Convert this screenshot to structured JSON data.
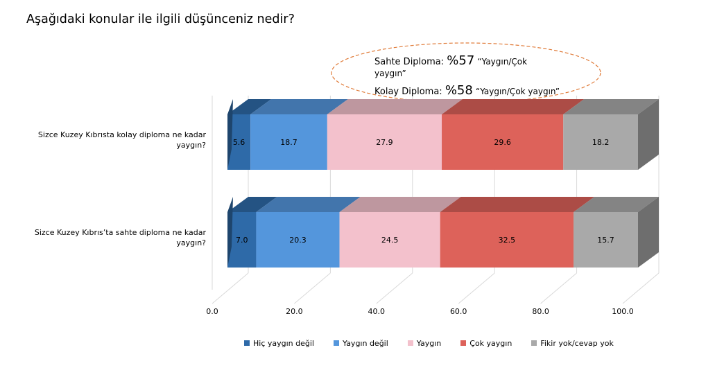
{
  "title": "Aşağıdaki konular ile ilgili düşünceniz nedir?",
  "callout": {
    "line1_label": "Sahte Diploma:",
    "line1_value": "%57",
    "line1_quote": "“Yaygın/Çok",
    "line2_quote": "yaygın”",
    "line3_label": "Kolay Diploma:",
    "line3_value": "%58",
    "line3_quote": "“Yaygın/Çok yaygın”"
  },
  "colors": {
    "series": [
      "#2e6aa8",
      "#5496dc",
      "#f3c1cc",
      "#dd625a",
      "#a9a9a9"
    ],
    "callout_border": "#e07b39"
  },
  "chart_data": {
    "type": "bar",
    "orientation": "horizontal",
    "stacked": true,
    "three_d": true,
    "categories": [
      [
        "Sizce Kuzey Kıbrısta kolay diploma ne kadar",
        "yaygın?"
      ],
      [
        "Sizce Kuzey Kıbrıs’ta sahte diploma ne kadar",
        "yaygın?"
      ]
    ],
    "series": [
      {
        "name": "Hiç yaygın değil",
        "values": [
          5.6,
          7.0
        ],
        "labels": [
          "5.6",
          "7.0"
        ]
      },
      {
        "name": "Yaygın değil",
        "values": [
          18.7,
          20.3
        ],
        "labels": [
          "18.7",
          "20.3"
        ]
      },
      {
        "name": "Yaygın",
        "values": [
          27.9,
          24.5
        ],
        "labels": [
          "27.9",
          "24.5"
        ]
      },
      {
        "name": "Çok yaygın",
        "values": [
          29.6,
          32.5
        ],
        "labels": [
          "29.6",
          "32.5"
        ]
      },
      {
        "name": "Fikir yok/cevap yok",
        "values": [
          18.2,
          15.7
        ],
        "labels": [
          "18.2",
          "15.7"
        ]
      }
    ],
    "xticks": [
      "0.0",
      "20.0",
      "40.0",
      "60.0",
      "80.0",
      "100.0"
    ],
    "xlim": [
      0,
      100
    ],
    "grid": true,
    "legend_position": "bottom"
  }
}
